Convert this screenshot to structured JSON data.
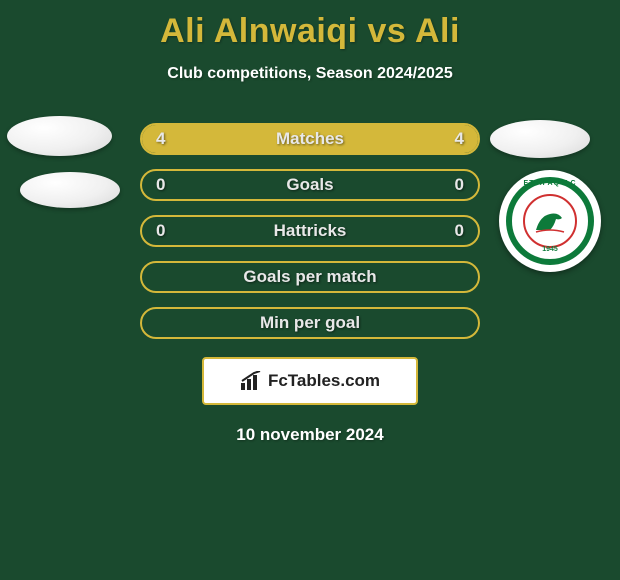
{
  "title": "Ali Alnwaiqi vs Ali",
  "subtitle": "Club competitions, Season 2024/2025",
  "rows": [
    {
      "label": "Matches",
      "left": "4",
      "right": "4",
      "leftFill": 50,
      "rightFill": 50
    },
    {
      "label": "Goals",
      "left": "0",
      "right": "0",
      "leftFill": 0,
      "rightFill": 0
    },
    {
      "label": "Hattricks",
      "left": "0",
      "right": "0",
      "leftFill": 0,
      "rightFill": 0
    },
    {
      "label": "Goals per match",
      "left": "",
      "right": "",
      "leftFill": 0,
      "rightFill": 0
    },
    {
      "label": "Min per goal",
      "left": "",
      "right": "",
      "leftFill": 0,
      "rightFill": 0
    }
  ],
  "brand": "FcTables.com",
  "date": "10 november 2024",
  "club": {
    "ringText": "ETTIFAQ F.C",
    "year": "1945"
  },
  "colors": {
    "background": "#1a4a2e",
    "accent": "#d4b83a",
    "text": "#ffffff",
    "barText": "#e8e8e8",
    "clubGreen": "#0d7a3a",
    "clubRed": "#d03030"
  }
}
